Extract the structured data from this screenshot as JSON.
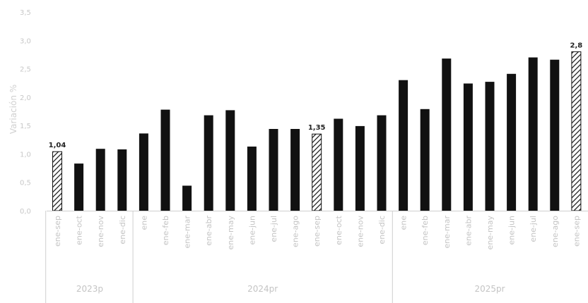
{
  "chart_data": {
    "type": "bar",
    "title": "",
    "xlabel": "",
    "ylabel": "Variación %",
    "ylim": [
      0,
      3.5
    ],
    "yticks": [
      "0,0",
      "0,5",
      "1,0",
      "1,5",
      "2,0",
      "2,5",
      "3,0",
      "3,5"
    ],
    "grid": false,
    "categories": [
      "ene-sep",
      "ene-oct",
      "ene-nov",
      "ene-dic",
      "ene",
      "ene-feb",
      "ene-mar",
      "ene-abr",
      "ene-may",
      "ene-jun",
      "ene-jul",
      "ene-ago",
      "ene-sep",
      "ene-oct",
      "ene-nov",
      "ene-dic",
      "ene",
      "ene-feb",
      "ene-mar",
      "ene-abr",
      "ene-may",
      "ene-jun",
      "ene-jul",
      "ene-ago",
      "ene-sep"
    ],
    "values": [
      1.04,
      0.83,
      1.09,
      1.08,
      1.36,
      1.78,
      0.44,
      1.68,
      1.77,
      1.13,
      1.44,
      1.44,
      1.35,
      1.62,
      1.49,
      1.68,
      2.3,
      1.79,
      2.68,
      2.24,
      2.27,
      2.41,
      2.7,
      2.66,
      2.8
    ],
    "highlighted": [
      0,
      12,
      24
    ],
    "data_labels": [
      {
        "index": 0,
        "text": "1,04"
      },
      {
        "index": 12,
        "text": "1,35"
      },
      {
        "index": 24,
        "text": "2,8"
      }
    ],
    "groups": [
      {
        "label": "2023p",
        "count": 4
      },
      {
        "label": "2024pr",
        "count": 12
      },
      {
        "label": "2025pr",
        "count": 9
      }
    ],
    "colors": {
      "bar": "#111111",
      "highlight_stroke": "#111111",
      "axis": "#cfcfcf"
    }
  }
}
